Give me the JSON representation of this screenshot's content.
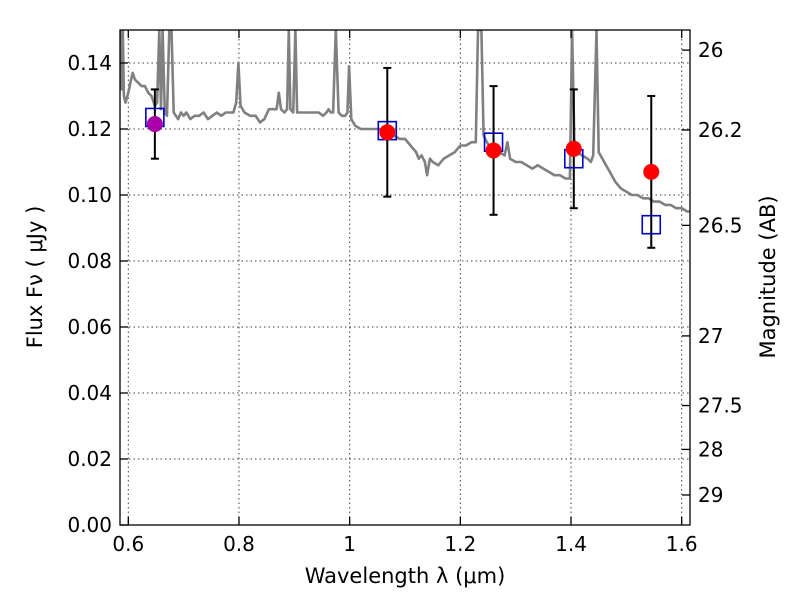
{
  "chart_data": {
    "type": "scatter",
    "xlabel": "Wavelength  λ (μm)",
    "ylabel": "Flux  Fν  ( μJy )",
    "y2label": "Magnitude (AB)",
    "xlim": [
      0.585,
      1.615
    ],
    "ylim": [
      0.0,
      0.15
    ],
    "grid": true,
    "x_ticks": [
      0.6,
      0.8,
      1.0,
      1.2,
      1.4,
      1.6
    ],
    "x_tick_labels": [
      "0.6",
      "0.8",
      "1",
      "1.2",
      "1.4",
      "1.6"
    ],
    "y_ticks": [
      0.0,
      0.02,
      0.04,
      0.06,
      0.08,
      0.1,
      0.12,
      0.14
    ],
    "y_tick_labels": [
      "0.00",
      "0.02",
      "0.04",
      "0.06",
      "0.08",
      "0.10",
      "0.12",
      "0.14"
    ],
    "y2_ticks": [
      {
        "flux": 0.1439,
        "label": "26"
      },
      {
        "flux": 0.1197,
        "label": "26.2"
      },
      {
        "flux": 0.0908,
        "label": "26.5"
      },
      {
        "flux": 0.0573,
        "label": "27"
      },
      {
        "flux": 0.0362,
        "label": "27.5"
      },
      {
        "flux": 0.0229,
        "label": "28"
      },
      {
        "flux": 0.0091,
        "label": "29"
      }
    ],
    "series": [
      {
        "marker": "circle",
        "color": "#ff0000",
        "points": [
          {
            "x": 1.068,
            "y": 0.119,
            "err": 0.0195
          },
          {
            "x": 1.26,
            "y": 0.1135,
            "err": 0.0195
          },
          {
            "x": 1.405,
            "y": 0.114,
            "err": 0.018
          },
          {
            "x": 1.545,
            "y": 0.107,
            "err": 0.023
          }
        ]
      },
      {
        "marker": "circle",
        "color": "#aa00aa",
        "points": [
          {
            "x": 0.648,
            "y": 0.1215,
            "err": 0.0105
          }
        ]
      },
      {
        "marker": "square",
        "color": "#0000cc",
        "points": [
          {
            "x": 0.648,
            "y": 0.1235
          },
          {
            "x": 1.068,
            "y": 0.1195
          },
          {
            "x": 1.26,
            "y": 0.116
          },
          {
            "x": 1.405,
            "y": 0.111
          },
          {
            "x": 1.545,
            "y": 0.091
          }
        ]
      },
      {
        "type": "line",
        "color": "#808080",
        "points": [
          [
            0.585,
            0.15
          ],
          [
            0.588,
            0.132
          ],
          [
            0.59,
            0.15
          ],
          [
            0.592,
            0.13
          ],
          [
            0.595,
            0.128
          ],
          [
            0.6,
            0.131
          ],
          [
            0.605,
            0.135
          ],
          [
            0.608,
            0.137
          ],
          [
            0.612,
            0.135
          ],
          [
            0.618,
            0.134
          ],
          [
            0.624,
            0.133
          ],
          [
            0.63,
            0.133
          ],
          [
            0.636,
            0.131
          ],
          [
            0.642,
            0.13
          ],
          [
            0.648,
            0.127
          ],
          [
            0.652,
            0.128
          ],
          [
            0.656,
            0.15
          ],
          [
            0.659,
            0.126
          ],
          [
            0.662,
            0.15
          ],
          [
            0.666,
            0.125
          ],
          [
            0.67,
            0.124
          ],
          [
            0.674,
            0.15
          ],
          [
            0.678,
            0.15
          ],
          [
            0.682,
            0.125
          ],
          [
            0.686,
            0.124
          ],
          [
            0.69,
            0.123
          ],
          [
            0.695,
            0.125
          ],
          [
            0.7,
            0.124
          ],
          [
            0.705,
            0.125
          ],
          [
            0.712,
            0.123
          ],
          [
            0.72,
            0.124
          ],
          [
            0.728,
            0.124
          ],
          [
            0.736,
            0.125
          ],
          [
            0.744,
            0.123
          ],
          [
            0.752,
            0.124
          ],
          [
            0.76,
            0.125
          ],
          [
            0.768,
            0.124
          ],
          [
            0.776,
            0.125
          ],
          [
            0.784,
            0.125
          ],
          [
            0.79,
            0.125
          ],
          [
            0.795,
            0.128
          ],
          [
            0.799,
            0.14
          ],
          [
            0.803,
            0.127
          ],
          [
            0.81,
            0.125
          ],
          [
            0.82,
            0.124
          ],
          [
            0.83,
            0.124
          ],
          [
            0.838,
            0.122
          ],
          [
            0.846,
            0.123
          ],
          [
            0.854,
            0.126
          ],
          [
            0.862,
            0.126
          ],
          [
            0.868,
            0.126
          ],
          [
            0.872,
            0.131
          ],
          [
            0.876,
            0.126
          ],
          [
            0.882,
            0.125
          ],
          [
            0.887,
            0.126
          ],
          [
            0.89,
            0.15
          ],
          [
            0.893,
            0.126
          ],
          [
            0.898,
            0.125
          ],
          [
            0.902,
            0.15
          ],
          [
            0.905,
            0.125
          ],
          [
            0.912,
            0.125
          ],
          [
            0.92,
            0.125
          ],
          [
            0.928,
            0.125
          ],
          [
            0.936,
            0.125
          ],
          [
            0.944,
            0.125
          ],
          [
            0.952,
            0.124
          ],
          [
            0.958,
            0.125
          ],
          [
            0.962,
            0.126
          ],
          [
            0.966,
            0.125
          ],
          [
            0.97,
            0.125
          ],
          [
            0.975,
            0.15
          ],
          [
            0.98,
            0.125
          ],
          [
            0.986,
            0.124
          ],
          [
            0.992,
            0.124
          ],
          [
            0.996,
            0.125
          ],
          [
            0.999,
            0.139
          ],
          [
            1.003,
            0.123
          ],
          [
            1.01,
            0.121
          ],
          [
            1.02,
            0.12
          ],
          [
            1.03,
            0.12
          ],
          [
            1.04,
            0.12
          ],
          [
            1.05,
            0.12
          ],
          [
            1.06,
            0.12
          ],
          [
            1.07,
            0.119
          ],
          [
            1.08,
            0.118
          ],
          [
            1.09,
            0.117
          ],
          [
            1.1,
            0.117
          ],
          [
            1.11,
            0.115
          ],
          [
            1.12,
            0.113
          ],
          [
            1.125,
            0.111
          ],
          [
            1.13,
            0.112
          ],
          [
            1.136,
            0.11
          ],
          [
            1.14,
            0.106
          ],
          [
            1.145,
            0.111
          ],
          [
            1.15,
            0.11
          ],
          [
            1.16,
            0.109
          ],
          [
            1.17,
            0.111
          ],
          [
            1.18,
            0.112
          ],
          [
            1.19,
            0.113
          ],
          [
            1.2,
            0.115
          ],
          [
            1.21,
            0.115
          ],
          [
            1.22,
            0.116
          ],
          [
            1.228,
            0.116
          ],
          [
            1.232,
            0.15
          ],
          [
            1.238,
            0.15
          ],
          [
            1.242,
            0.118
          ],
          [
            1.248,
            0.116
          ],
          [
            1.255,
            0.114
          ],
          [
            1.262,
            0.114
          ],
          [
            1.27,
            0.113
          ],
          [
            1.28,
            0.112
          ],
          [
            1.285,
            0.116
          ],
          [
            1.29,
            0.111
          ],
          [
            1.3,
            0.11
          ],
          [
            1.31,
            0.11
          ],
          [
            1.32,
            0.109
          ],
          [
            1.33,
            0.108
          ],
          [
            1.34,
            0.109
          ],
          [
            1.35,
            0.108
          ],
          [
            1.36,
            0.107
          ],
          [
            1.37,
            0.106
          ],
          [
            1.38,
            0.106
          ],
          [
            1.39,
            0.105
          ],
          [
            1.398,
            0.105
          ],
          [
            1.402,
            0.15
          ],
          [
            1.406,
            0.117
          ],
          [
            1.41,
            0.113
          ],
          [
            1.42,
            0.112
          ],
          [
            1.43,
            0.111
          ],
          [
            1.436,
            0.11
          ],
          [
            1.44,
            0.112
          ],
          [
            1.446,
            0.15
          ],
          [
            1.45,
            0.113
          ],
          [
            1.46,
            0.11
          ],
          [
            1.47,
            0.107
          ],
          [
            1.48,
            0.104
          ],
          [
            1.49,
            0.102
          ],
          [
            1.5,
            0.101
          ],
          [
            1.51,
            0.1
          ],
          [
            1.52,
            0.1
          ],
          [
            1.53,
            0.099
          ],
          [
            1.54,
            0.099
          ],
          [
            1.55,
            0.098
          ],
          [
            1.56,
            0.098
          ],
          [
            1.57,
            0.097
          ],
          [
            1.58,
            0.097
          ],
          [
            1.59,
            0.096
          ],
          [
            1.6,
            0.096
          ],
          [
            1.61,
            0.095
          ],
          [
            1.615,
            0.095
          ]
        ]
      }
    ]
  }
}
